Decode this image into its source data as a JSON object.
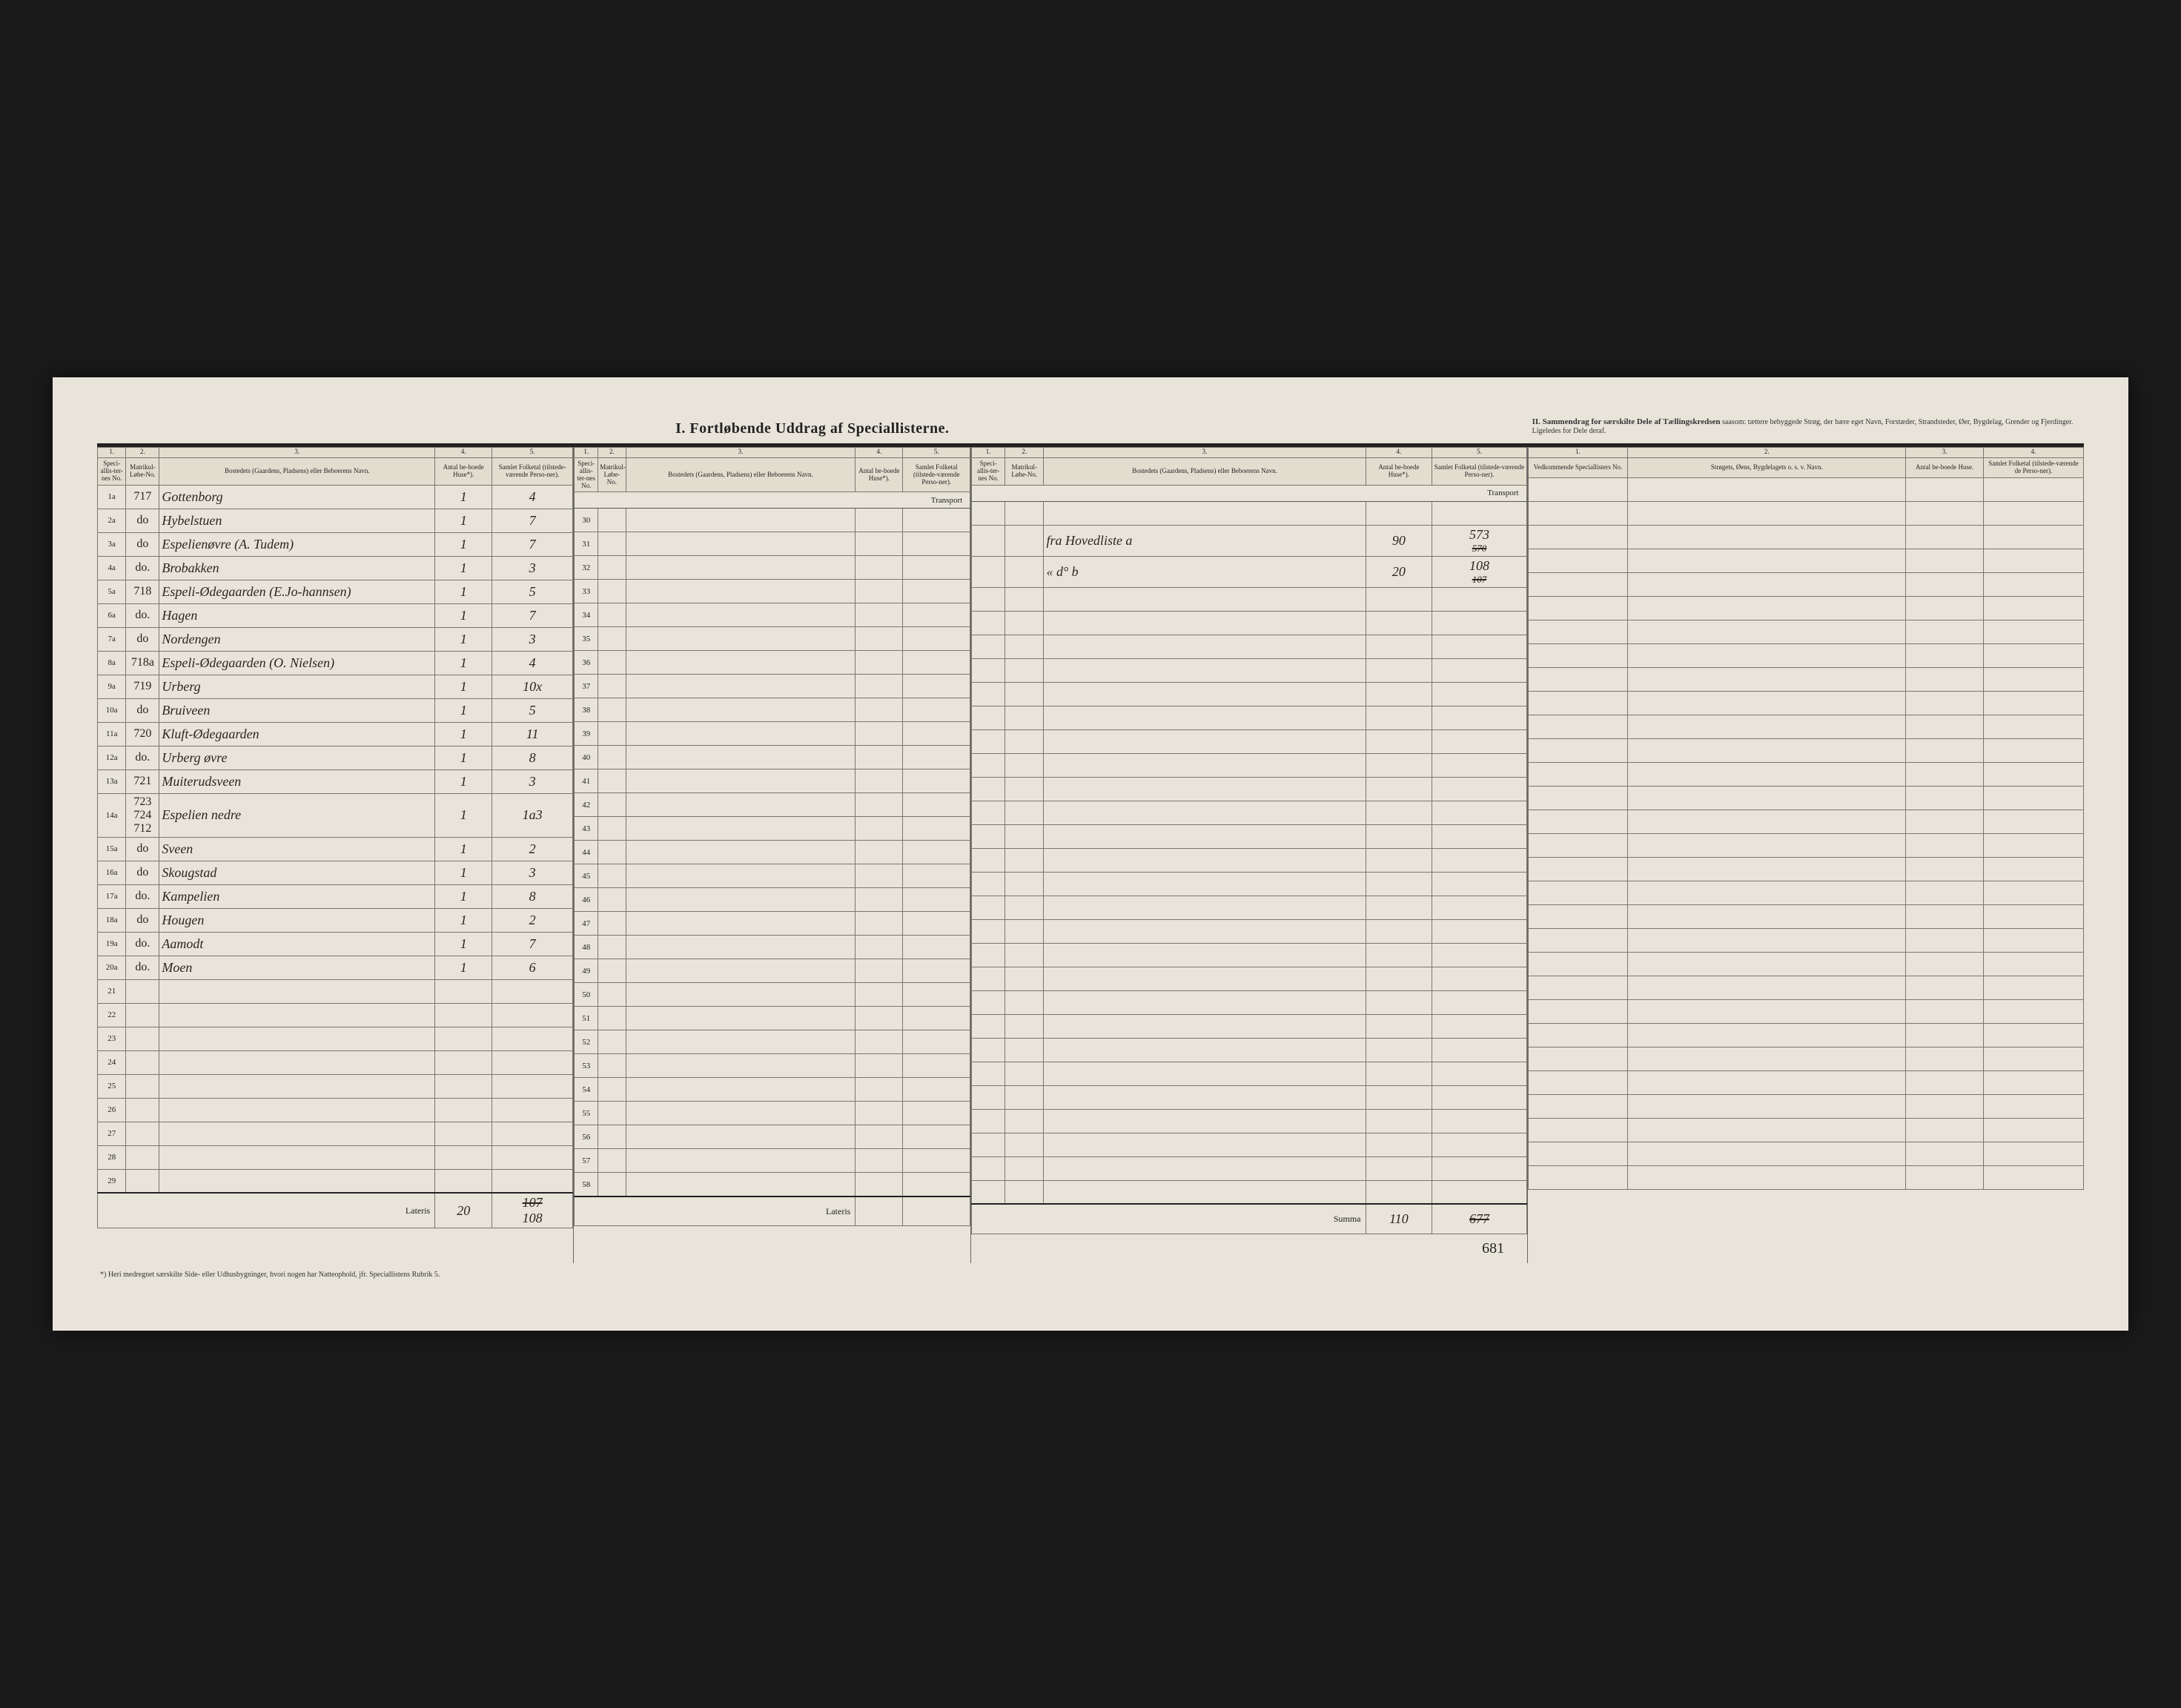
{
  "title_main": "I.  Fortløbende Uddrag af Speciallisterne.",
  "title_side_bold": "II.  Sammendrag for særskilte Dele af Tællingskredsen",
  "title_side_rest": " saasom: tættere bebyggede Strøg, der bære eget Navn, Forstæder, Strandsteder, Øer, Bygdelag, Grender og Fjerdinger. Ligeledes for Dele deraf.",
  "cols": {
    "c1": "1.",
    "c2": "2.",
    "c3": "3.",
    "c4": "4.",
    "c5": "5.",
    "h1": "Speci-allis-ter-nes No.",
    "h2": "Matrikul-Løbe-No.",
    "h3": "Bostedets (Gaardens, Pladsens) eller Beboerens Navn.",
    "h4": "Antal be-boede Huse*).",
    "h5": "Samlet Folketal (tilstede-værende Perso-ner).",
    "hf1": "Vedkommende Speciallisters No.",
    "hf2": "Strøgets, Øens, Bygdelagets o. s. v. Navn.",
    "hf3": "Antal be-boede Huse.",
    "hf4": "Samlet Folketal (tilstede-værende de Perso-ner)."
  },
  "transport": "Transport",
  "lateris": "Lateris",
  "summa": "Summa",
  "footnote": "*) Heri medregnet særskilte Side- eller Udhusbygninger, hvori nogen har Natteophold, jfr. Speciallistens Rubrik 5.",
  "left_rows": [
    {
      "n": "1a",
      "mat": "717",
      "name": "Gottenborg",
      "h": "1",
      "f": "4"
    },
    {
      "n": "2a",
      "mat": "do",
      "name": "Hybelstuen",
      "h": "1",
      "f": "7"
    },
    {
      "n": "3a",
      "mat": "do",
      "name": "Espelienøvre (A. Tudem)",
      "h": "1",
      "f": "7"
    },
    {
      "n": "4a",
      "mat": "do.",
      "name": "Brobakken",
      "h": "1",
      "f": "3"
    },
    {
      "n": "5a",
      "mat": "718",
      "name": "Espeli-Ødegaarden (E.Jo-hannsen)",
      "h": "1",
      "f": "5"
    },
    {
      "n": "6a",
      "mat": "do.",
      "name": "Hagen",
      "h": "1",
      "f": "7"
    },
    {
      "n": "7a",
      "mat": "do",
      "name": "Nordengen",
      "h": "1",
      "f": "3"
    },
    {
      "n": "8a",
      "mat": "718a",
      "name": "Espeli-Ødegaarden (O. Nielsen)",
      "h": "1",
      "f": "4"
    },
    {
      "n": "9a",
      "mat": "719",
      "name": "Urberg",
      "h": "1",
      "f": "10x"
    },
    {
      "n": "10a",
      "mat": "do",
      "name": "Bruiveen",
      "h": "1",
      "f": "5"
    },
    {
      "n": "11a",
      "mat": "720",
      "name": "Kluft-Ødegaarden",
      "h": "1",
      "f": "11"
    },
    {
      "n": "12a",
      "mat": "do.",
      "name": "Urberg øvre",
      "h": "1",
      "f": "8"
    },
    {
      "n": "13a",
      "mat": "721",
      "name": "Muiterudsveen",
      "h": "1",
      "f": "3"
    },
    {
      "n": "14a",
      "mat": "723 724 712",
      "name": "Espelien nedre",
      "h": "1",
      "f": "1a3"
    },
    {
      "n": "15a",
      "mat": "do",
      "name": "Sveen",
      "h": "1",
      "f": "2"
    },
    {
      "n": "16a",
      "mat": "do",
      "name": "Skougstad",
      "h": "1",
      "f": "3"
    },
    {
      "n": "17a",
      "mat": "do.",
      "name": "Kampelien",
      "h": "1",
      "f": "8"
    },
    {
      "n": "18a",
      "mat": "do",
      "name": "Hougen",
      "h": "1",
      "f": "2"
    },
    {
      "n": "19a",
      "mat": "do.",
      "name": "Aamodt",
      "h": "1",
      "f": "7"
    },
    {
      "n": "20a",
      "mat": "do.",
      "name": "Moen",
      "h": "1",
      "f": "6"
    },
    {
      "n": "21",
      "mat": "",
      "name": "",
      "h": "",
      "f": ""
    },
    {
      "n": "22",
      "mat": "",
      "name": "",
      "h": "",
      "f": ""
    },
    {
      "n": "23",
      "mat": "",
      "name": "",
      "h": "",
      "f": ""
    },
    {
      "n": "24",
      "mat": "",
      "name": "",
      "h": "",
      "f": ""
    },
    {
      "n": "25",
      "mat": "",
      "name": "",
      "h": "",
      "f": ""
    },
    {
      "n": "26",
      "mat": "",
      "name": "",
      "h": "",
      "f": ""
    },
    {
      "n": "27",
      "mat": "",
      "name": "",
      "h": "",
      "f": ""
    },
    {
      "n": "28",
      "mat": "",
      "name": "",
      "h": "",
      "f": ""
    },
    {
      "n": "29",
      "mat": "",
      "name": "",
      "h": "",
      "f": ""
    }
  ],
  "left_lateris": {
    "h": "20",
    "f_strike": "107",
    "f": "108"
  },
  "mid_rows": [
    {
      "n": "30"
    },
    {
      "n": "31"
    },
    {
      "n": "32"
    },
    {
      "n": "33"
    },
    {
      "n": "34"
    },
    {
      "n": "35"
    },
    {
      "n": "36"
    },
    {
      "n": "37"
    },
    {
      "n": "38"
    },
    {
      "n": "39"
    },
    {
      "n": "40"
    },
    {
      "n": "41"
    },
    {
      "n": "42"
    },
    {
      "n": "43"
    },
    {
      "n": "44"
    },
    {
      "n": "45"
    },
    {
      "n": "46"
    },
    {
      "n": "47"
    },
    {
      "n": "48"
    },
    {
      "n": "49"
    },
    {
      "n": "50"
    },
    {
      "n": "51"
    },
    {
      "n": "52"
    },
    {
      "n": "53"
    },
    {
      "n": "54"
    },
    {
      "n": "55"
    },
    {
      "n": "56"
    },
    {
      "n": "57"
    },
    {
      "n": "58"
    }
  ],
  "right_rows": [
    {
      "name": "",
      "h": "",
      "f": ""
    },
    {
      "name": "fra Hovedliste a",
      "h": "90",
      "f": "573",
      "f_strike": "570"
    },
    {
      "name": "«     d°     b",
      "h": "20",
      "f": "108",
      "f_strike": "107"
    }
  ],
  "right_blank_count": 26,
  "summa_vals": {
    "h": "110",
    "f_strike": "677",
    "f": "681"
  },
  "colors": {
    "paper": "#e8e4da",
    "ink": "#222222",
    "line": "#7a766c",
    "hand": "#2a2620",
    "frame": "#1a1a1a"
  }
}
